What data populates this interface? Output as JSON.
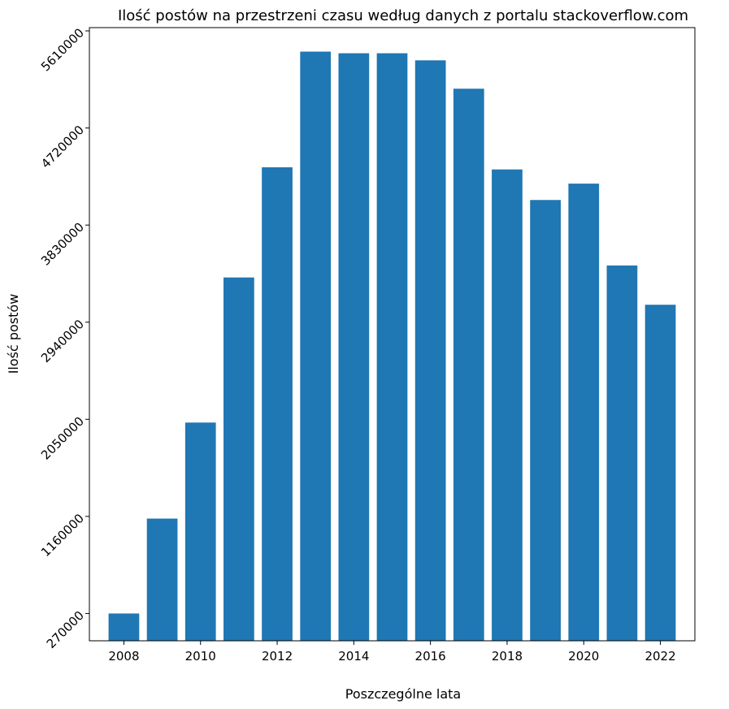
{
  "chart_data": {
    "type": "bar",
    "title": "Ilość postów na przestrzeni czasu według danych z portalu stackoverflow.com",
    "xlabel": "Poszczególne lata",
    "ylabel": "Ilość postów",
    "categories": [
      2008,
      2009,
      2010,
      2011,
      2012,
      2013,
      2014,
      2015,
      2016,
      2017,
      2018,
      2019,
      2020,
      2021,
      2022
    ],
    "values": [
      270000,
      1140000,
      2020000,
      3350000,
      4360000,
      5420000,
      5405000,
      5405000,
      5340000,
      5080000,
      4340000,
      4060000,
      4210000,
      3460000,
      3100000
    ],
    "x_ticks": [
      2008,
      2010,
      2012,
      2014,
      2016,
      2018,
      2020,
      2022
    ],
    "y_ticks": [
      270000,
      1160000,
      2050000,
      2940000,
      3830000,
      4720000,
      5610000
    ],
    "x_ticks_labels": [
      "2008",
      "2010",
      "2012",
      "2014",
      "2016",
      "2018",
      "2020",
      "2022"
    ],
    "y_ticks_labels": [
      "270000",
      "1160000",
      "2050000",
      "2940000",
      "3830000",
      "4720000",
      "5610000"
    ],
    "ylim": [
      20000,
      5640000
    ],
    "xlim": [
      2007.1,
      2022.9
    ],
    "bar_color": "#1f77b4",
    "grid": false,
    "legend": "none"
  }
}
